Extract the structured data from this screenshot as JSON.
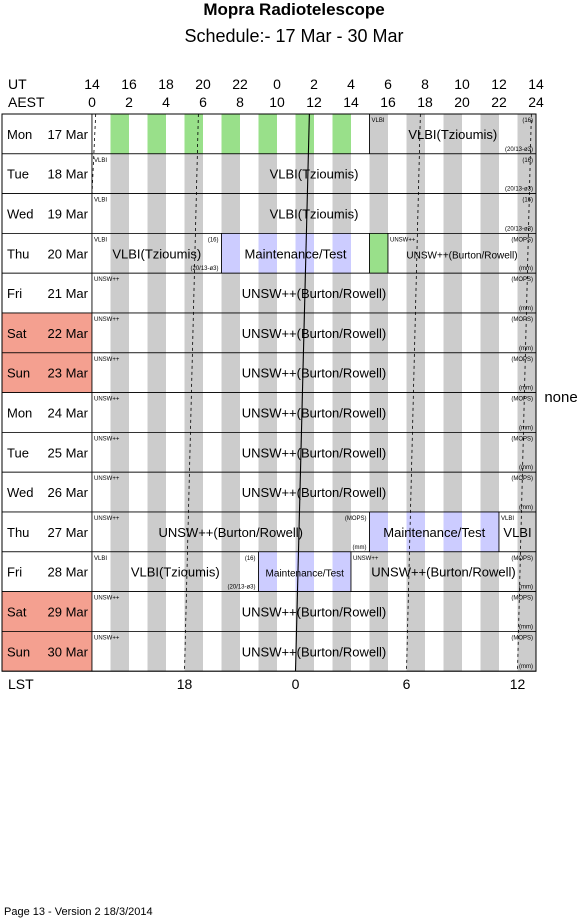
{
  "title": "Mopra Radiotelescope",
  "subtitle": "Schedule:- 17 Mar - 30 Mar",
  "header": {
    "ut_label": "UT",
    "aest_label": "AEST",
    "ut_hours": [
      "14",
      "16",
      "18",
      "20",
      "22",
      "0",
      "2",
      "4",
      "6",
      "8",
      "10",
      "12",
      "14"
    ],
    "aest_hours": [
      "0",
      "2",
      "4",
      "6",
      "8",
      "10",
      "12",
      "14",
      "16",
      "18",
      "20",
      "22",
      "24"
    ]
  },
  "lst": {
    "label": "LST",
    "ticks": [
      {
        "label": "18",
        "aest": 5
      },
      {
        "label": "0",
        "aest": 11
      },
      {
        "label": "6",
        "aest": 17
      },
      {
        "label": "12",
        "aest": 23
      }
    ]
  },
  "colors": {
    "weekend": "#f4a090",
    "green": "#99e08a",
    "blue": "#ccccff",
    "stripe": "#cccccc"
  },
  "rows": [
    {
      "dow": "Mon",
      "date": "17 Mar",
      "weekend": false,
      "blocks": [
        {
          "s": 0,
          "e": 15,
          "fill": "green",
          "label": "",
          "code": "",
          "tag": "",
          "sub": ""
        },
        {
          "s": 15,
          "e": 24,
          "fill": "stripe",
          "label": "VLBI(Tzioumis)",
          "code": "VLBI",
          "tag": "(16)",
          "sub": "(20/13-ø3)"
        }
      ]
    },
    {
      "dow": "Tue",
      "date": "18 Mar",
      "weekend": false,
      "blocks": [
        {
          "s": 0,
          "e": 24,
          "fill": "stripe",
          "label": "VLBI(Tzioumis)",
          "code": "VLBI",
          "tag": "(16)",
          "sub": "(20/13-ø3)"
        }
      ]
    },
    {
      "dow": "Wed",
      "date": "19 Mar",
      "weekend": false,
      "blocks": [
        {
          "s": 0,
          "e": 24,
          "fill": "stripe",
          "label": "VLBI(Tzioumis)",
          "code": "VLBI",
          "tag": "(16)",
          "sub": "(20/13-ø3)"
        }
      ]
    },
    {
      "dow": "Thu",
      "date": "20 Mar",
      "weekend": false,
      "blocks": [
        {
          "s": 0,
          "e": 7,
          "fill": "stripe",
          "label": "VLBI(Tzioumis)",
          "code": "VLBI",
          "tag": "(16)",
          "sub": "(20/13-ø3)"
        },
        {
          "s": 7,
          "e": 15,
          "fill": "blue",
          "label": "Maintenance/Test",
          "code": "",
          "tag": "",
          "sub": ""
        },
        {
          "s": 15,
          "e": 16,
          "fill": "green",
          "label": "",
          "code": "",
          "tag": "",
          "sub": ""
        },
        {
          "s": 16,
          "e": 24,
          "fill": "stripe",
          "label": "UNSW++(Burton/Rowell)",
          "code": "UNSW++",
          "tag": "(MOPS)",
          "sub": "(mm)",
          "small": true
        }
      ]
    },
    {
      "dow": "Fri",
      "date": "21 Mar",
      "weekend": false,
      "blocks": [
        {
          "s": 0,
          "e": 24,
          "fill": "stripe",
          "label": "UNSW++(Burton/Rowell)",
          "code": "UNSW++",
          "tag": "(MOPS)",
          "sub": "(mm)"
        }
      ]
    },
    {
      "dow": "Sat",
      "date": "22 Mar",
      "weekend": true,
      "blocks": [
        {
          "s": 0,
          "e": 24,
          "fill": "stripe",
          "label": "UNSW++(Burton/Rowell)",
          "code": "UNSW++",
          "tag": "(MOPS)",
          "sub": "(mm)"
        }
      ]
    },
    {
      "dow": "Sun",
      "date": "23 Mar",
      "weekend": true,
      "blocks": [
        {
          "s": 0,
          "e": 24,
          "fill": "stripe",
          "label": "UNSW++(Burton/Rowell)",
          "code": "UNSW++",
          "tag": "(MOPS)",
          "sub": "(mm)"
        }
      ]
    },
    {
      "dow": "Mon",
      "date": "24 Mar",
      "weekend": false,
      "blocks": [
        {
          "s": 0,
          "e": 24,
          "fill": "stripe",
          "label": "UNSW++(Burton/Rowell)",
          "code": "UNSW++",
          "tag": "(MOPS)",
          "sub": "(mm)"
        }
      ]
    },
    {
      "dow": "Tue",
      "date": "25 Mar",
      "weekend": false,
      "blocks": [
        {
          "s": 0,
          "e": 24,
          "fill": "stripe",
          "label": "UNSW++(Burton/Rowell)",
          "code": "UNSW++",
          "tag": "(MOPS)",
          "sub": "(mm)"
        }
      ]
    },
    {
      "dow": "Wed",
      "date": "26 Mar",
      "weekend": false,
      "blocks": [
        {
          "s": 0,
          "e": 24,
          "fill": "stripe",
          "label": "UNSW++(Burton/Rowell)",
          "code": "UNSW++",
          "tag": "(MOPS)",
          "sub": "(mm)"
        }
      ]
    },
    {
      "dow": "Thu",
      "date": "27 Mar",
      "weekend": false,
      "blocks": [
        {
          "s": 0,
          "e": 15,
          "fill": "stripe",
          "label": "UNSW++(Burton/Rowell)",
          "code": "UNSW++",
          "tag": "(MOPS)",
          "sub": "(mm)"
        },
        {
          "s": 15,
          "e": 22,
          "fill": "blue",
          "label": "Maintenance/Test",
          "code": "",
          "tag": "",
          "sub": ""
        },
        {
          "s": 22,
          "e": 24,
          "fill": "stripe",
          "label": "VLBI",
          "code": "VLBI",
          "tag": "",
          "sub": ""
        }
      ]
    },
    {
      "dow": "Fri",
      "date": "28 Mar",
      "weekend": false,
      "blocks": [
        {
          "s": 0,
          "e": 9,
          "fill": "stripe",
          "label": "VLBI(Tzioumis)",
          "code": "VLBI",
          "tag": "(16)",
          "sub": "(20/13-ø3)"
        },
        {
          "s": 9,
          "e": 14,
          "fill": "blue",
          "label": "Maintenance/Test",
          "code": "",
          "tag": "",
          "sub": "",
          "small": true
        },
        {
          "s": 14,
          "e": 24,
          "fill": "stripe",
          "label": "UNSW++(Burton/Rowell)",
          "code": "UNSW++",
          "tag": "(MOPS)",
          "sub": "(mm)"
        }
      ]
    },
    {
      "dow": "Sat",
      "date": "29 Mar",
      "weekend": true,
      "blocks": [
        {
          "s": 0,
          "e": 24,
          "fill": "stripe",
          "label": "UNSW++(Burton/Rowell)",
          "code": "UNSW++",
          "tag": "(MOPS)",
          "sub": "(mm)"
        }
      ]
    },
    {
      "dow": "Sun",
      "date": "30 Mar",
      "weekend": true,
      "blocks": [
        {
          "s": 0,
          "e": 24,
          "fill": "stripe",
          "label": "UNSW++(Burton/Rowell)",
          "code": "UNSW++",
          "tag": "(MOPS)",
          "sub": "(mm)"
        }
      ]
    }
  ],
  "side_note": "none",
  "footer": "Page 13 - Version 2  18/3/2014"
}
